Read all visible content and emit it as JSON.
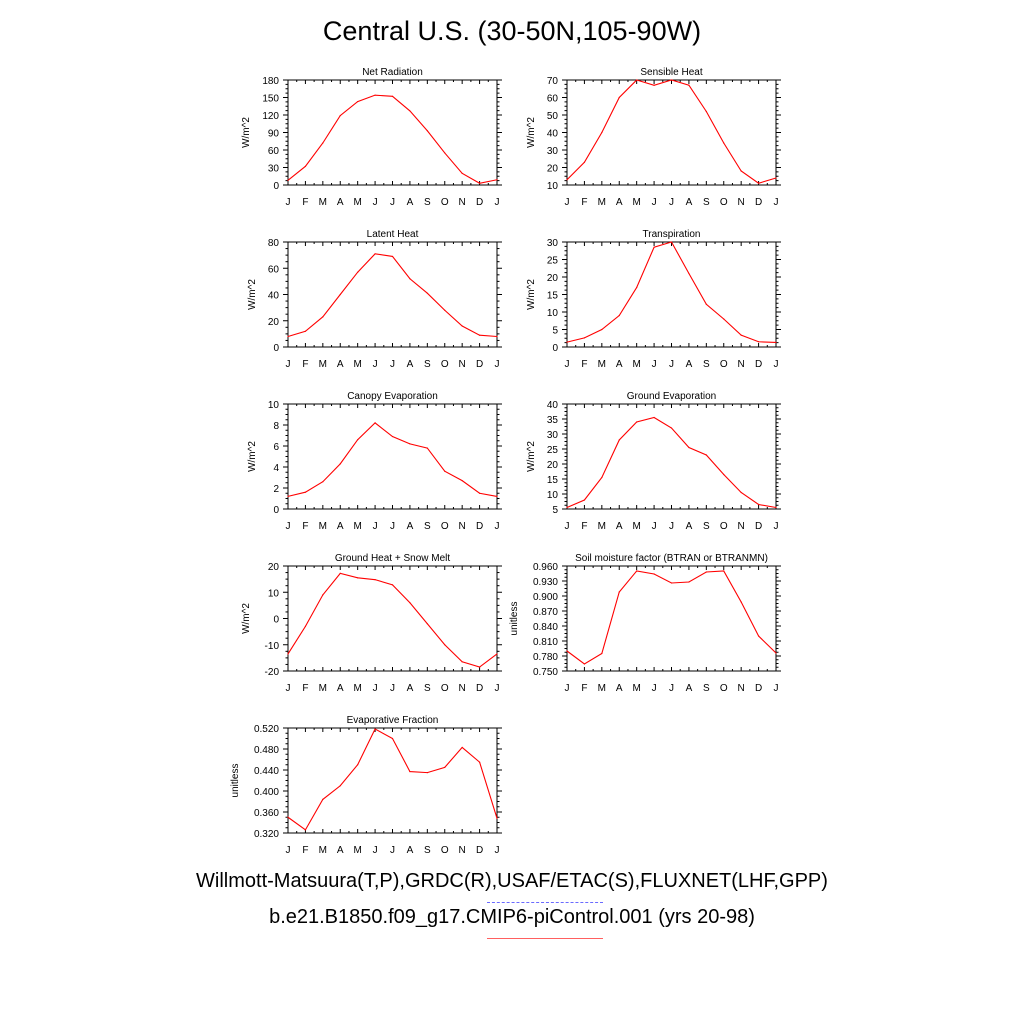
{
  "title": "Central U.S. (30-50N,105-90W)",
  "month_labels": [
    "J",
    "F",
    "M",
    "A",
    "M",
    "J",
    "J",
    "A",
    "S",
    "O",
    "N",
    "D",
    "J"
  ],
  "legend": {
    "observations": "Willmott-Matsuura(T,P),GRDC(R),USAF/ETAC(S),FLUXNET(LHF,GPP)",
    "model": "b.e21.B1850.f09_g17.CMIP6-piControl.001 (yrs 20-98)",
    "observations_color": "#6a6aff",
    "model_color": "#ff0000"
  },
  "chart_data": [
    {
      "type": "line",
      "title": "Net Radiation",
      "ylabel": "W/m^2",
      "ylim": [
        0,
        180
      ],
      "yticks": [
        "0",
        "30",
        "60",
        "90",
        "120",
        "150",
        "180"
      ],
      "series": [
        {
          "values": [
            8,
            32,
            72,
            119,
            143,
            154,
            152,
            127,
            93,
            55,
            20,
            3,
            9
          ]
        }
      ]
    },
    {
      "type": "line",
      "title": "Sensible Heat",
      "ylabel": "W/m^2",
      "ylim": [
        10,
        70
      ],
      "yticks": [
        "10",
        "20",
        "30",
        "40",
        "50",
        "60",
        "70"
      ],
      "series": [
        {
          "values": [
            13,
            23,
            40,
            60,
            70,
            67,
            70,
            67,
            52,
            34,
            18,
            11,
            14
          ]
        }
      ]
    },
    {
      "type": "line",
      "title": "Latent Heat",
      "ylabel": "W/m^2",
      "ylim": [
        0,
        80
      ],
      "yticks": [
        "0",
        "20",
        "40",
        "60",
        "80"
      ],
      "series": [
        {
          "values": [
            8,
            12,
            23,
            40,
            57,
            71,
            69,
            52,
            41,
            28,
            16,
            9,
            8
          ]
        }
      ]
    },
    {
      "type": "line",
      "title": "Transpiration",
      "ylabel": "W/m^2",
      "ylim": [
        0,
        30
      ],
      "yticks": [
        "0",
        "5",
        "10",
        "15",
        "20",
        "25",
        "30"
      ],
      "series": [
        {
          "values": [
            1.4,
            2.6,
            5,
            9,
            17,
            28.5,
            30,
            21,
            12.2,
            8,
            3.4,
            1.5,
            1.3
          ]
        }
      ]
    },
    {
      "type": "line",
      "title": "Canopy Evaporation",
      "ylabel": "W/m^2",
      "ylim": [
        0,
        10
      ],
      "yticks": [
        "0",
        "2",
        "4",
        "6",
        "8",
        "10"
      ],
      "series": [
        {
          "values": [
            1.2,
            1.6,
            2.6,
            4.3,
            6.6,
            8.2,
            6.9,
            6.2,
            5.8,
            3.6,
            2.7,
            1.5,
            1.2
          ]
        }
      ]
    },
    {
      "type": "line",
      "title": "Ground Evaporation",
      "ylabel": "W/m^2",
      "ylim": [
        5,
        40
      ],
      "yticks": [
        "5",
        "10",
        "15",
        "20",
        "25",
        "30",
        "35",
        "40"
      ],
      "series": [
        {
          "values": [
            5.5,
            8,
            15.5,
            28,
            34,
            35.5,
            32,
            25.5,
            23,
            16.5,
            10.5,
            6.5,
            5.5
          ]
        }
      ]
    },
    {
      "type": "line",
      "title": "Ground Heat + Snow Melt",
      "ylabel": "W/m^2",
      "ylim": [
        -20,
        20
      ],
      "yticks": [
        "-20",
        "-10",
        "0",
        "10",
        "20"
      ],
      "series": [
        {
          "values": [
            -13.5,
            -3,
            9,
            17.2,
            15.5,
            14.8,
            12.8,
            6,
            -2,
            -10,
            -16.5,
            -18.5,
            -13.5
          ]
        }
      ]
    },
    {
      "type": "line",
      "title": "Soil moisture factor (BTRAN or BTRANMN)",
      "ylabel": "unitless",
      "ylim": [
        0.75,
        0.96
      ],
      "yticks": [
        "0.750",
        "0.780",
        "0.810",
        "0.840",
        "0.870",
        "0.900",
        "0.930",
        "0.960"
      ],
      "series": [
        {
          "values": [
            0.79,
            0.764,
            0.785,
            0.908,
            0.95,
            0.944,
            0.926,
            0.928,
            0.948,
            0.95,
            0.888,
            0.82,
            0.786
          ]
        }
      ]
    },
    {
      "type": "line",
      "title": "Evaporative Fraction",
      "ylabel": "unitless",
      "ylim": [
        0.32,
        0.52
      ],
      "yticks": [
        "0.320",
        "0.360",
        "0.400",
        "0.440",
        "0.480",
        "0.520"
      ],
      "series": [
        {
          "values": [
            0.35,
            0.326,
            0.384,
            0.41,
            0.45,
            0.518,
            0.5,
            0.437,
            0.435,
            0.445,
            0.483,
            0.455,
            0.348
          ]
        }
      ]
    }
  ]
}
